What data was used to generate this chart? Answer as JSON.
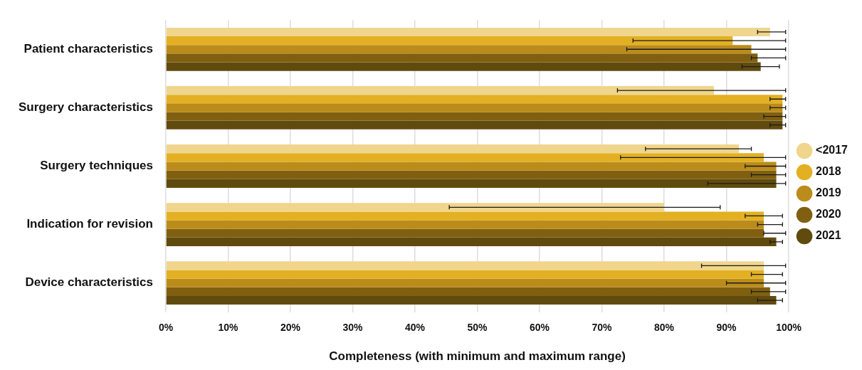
{
  "chart_data": {
    "type": "bar",
    "orientation": "horizontal",
    "categories": [
      "Patient characteristics",
      "Surgery characteristics",
      "Surgery techniques",
      "Indication for revision",
      "Device characteristics"
    ],
    "series": [
      {
        "name": "<2017",
        "color": "#f0d58c",
        "values": [
          97,
          88,
          92,
          80,
          96
        ],
        "errors": [
          [
            95,
            99.5
          ],
          [
            72.5,
            99.5
          ],
          [
            77,
            94
          ],
          [
            45.5,
            89
          ],
          [
            86,
            99.5
          ]
        ]
      },
      {
        "name": "2018",
        "color": "#e2b022",
        "values": [
          91,
          99,
          96,
          96,
          96
        ],
        "errors": [
          [
            75,
            99.5
          ],
          [
            97,
            99.5
          ],
          [
            73,
            99.5
          ],
          [
            93,
            99
          ],
          [
            94,
            99
          ]
        ]
      },
      {
        "name": "2019",
        "color": "#bb8c1a",
        "values": [
          94,
          99,
          98,
          96,
          96
        ],
        "errors": [
          [
            74,
            99.5
          ],
          [
            97,
            99.5
          ],
          [
            93,
            99.5
          ],
          [
            95,
            99
          ],
          [
            90,
            99.5
          ]
        ]
      },
      {
        "name": "2020",
        "color": "#806010",
        "values": [
          95,
          99,
          98,
          96,
          97
        ],
        "errors": [
          [
            94,
            99.5
          ],
          [
            96,
            99.5
          ],
          [
            94,
            99.5
          ],
          [
            96,
            99.5
          ],
          [
            94,
            99.5
          ]
        ]
      },
      {
        "name": "2021",
        "color": "#604a0e",
        "values": [
          95.5,
          99,
          98,
          98,
          98
        ],
        "errors": [
          [
            92.5,
            98.5
          ],
          [
            97,
            99.5
          ],
          [
            87,
            99.5
          ],
          [
            97,
            99
          ],
          [
            95,
            99
          ]
        ]
      }
    ],
    "xlabel": "Completeness (with minimum and maximum range)",
    "xlim": [
      0,
      100
    ],
    "xticks": [
      {
        "value": 0,
        "label": "0%"
      },
      {
        "value": 10,
        "label": "10%"
      },
      {
        "value": 20,
        "label": "20%"
      },
      {
        "value": 30,
        "label": "30%"
      },
      {
        "value": 40,
        "label": "40%"
      },
      {
        "value": 50,
        "label": "50%"
      },
      {
        "value": 60,
        "label": "60%"
      },
      {
        "value": 70,
        "label": "70%"
      },
      {
        "value": 80,
        "label": "80%"
      },
      {
        "value": 90,
        "label": "90%"
      },
      {
        "value": 100,
        "label": "100%"
      }
    ],
    "grid": "x",
    "legend": "right"
  }
}
